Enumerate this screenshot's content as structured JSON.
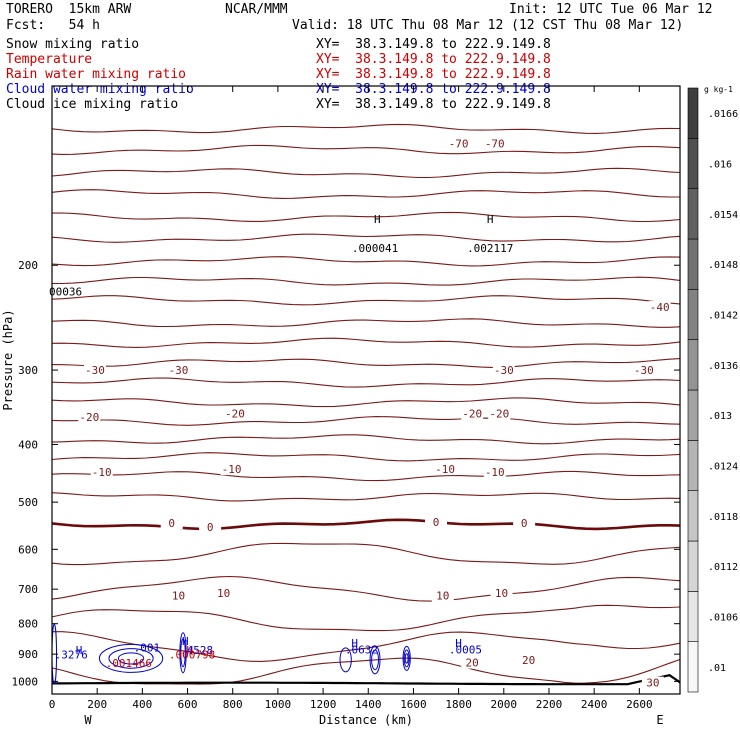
{
  "header": {
    "model": "TORERO  15km ARW",
    "org": "NCAR/MMM",
    "init": "Init: 12 UTC Tue 06 Mar 12",
    "fcst": "Fcst:   54 h",
    "valid": "Valid: 18 UTC Thu 08 Mar 12 (12 CST Thu 08 Mar 12)"
  },
  "legend": [
    {
      "label": "Snow mixing ratio",
      "color": "#000000",
      "xy": "XY=  38.3.149.8 to 222.9.149.8"
    },
    {
      "label": "Temperature",
      "color": "#cc0000",
      "xy": "XY=  38.3.149.8 to 222.9.149.8"
    },
    {
      "label": "Rain water mixing ratio",
      "color": "#cc0000",
      "xy": "XY=  38.3.149.8 to 222.9.149.8"
    },
    {
      "label": "Cloud water mixing ratio",
      "color": "#0000cc",
      "xy": "XY=  38.3.149.8 to 222.9.149.8"
    },
    {
      "label": "Cloud ice mixing ratio",
      "color": "#000000",
      "xy": "XY=  38.3.149.8 to 222.9.149.8"
    }
  ],
  "colors": {
    "temperature": "#7a1a1a",
    "zero_isotherm": "#6a0a0a",
    "rain": "#cc0000",
    "cloud_water": "#0000cc",
    "terrain": "#000000"
  },
  "chart_data": {
    "type": "cross-section",
    "xlabel": "Distance (km)",
    "ylabel": "Pressure (hPa)",
    "xlim": [
      0,
      2780
    ],
    "ylim": [
      1050,
      100
    ],
    "y_scale": "log",
    "x_ticks": [
      0,
      200,
      400,
      600,
      800,
      1000,
      1200,
      1400,
      1600,
      1800,
      2000,
      2200,
      2400,
      2600
    ],
    "y_ticks": [
      200,
      300,
      400,
      500,
      600,
      700,
      800,
      900,
      1000
    ],
    "x_end_labels": {
      "left": "W",
      "right": "E"
    },
    "colorbar": {
      "units": "g kg-1",
      "ticks": [
        ".01",
        ".0106",
        ".0112",
        ".0118",
        ".0124",
        ".013",
        ".0136",
        ".0142",
        ".0148",
        ".0154",
        ".016",
        ".0166"
      ]
    },
    "temperature_contour_labels": [
      {
        "text": "-70",
        "x": 1800,
        "p": 125
      },
      {
        "text": "-70",
        "x": 1960,
        "p": 125
      },
      {
        "text": "-40",
        "x": 2690,
        "p": 235
      },
      {
        "text": "-30",
        "x": 190,
        "p": 300
      },
      {
        "text": "-30",
        "x": 560,
        "p": 300
      },
      {
        "text": "-30",
        "x": 2000,
        "p": 300
      },
      {
        "text": "-30",
        "x": 2620,
        "p": 300
      },
      {
        "text": "-20",
        "x": 165,
        "p": 360
      },
      {
        "text": "-20",
        "x": 810,
        "p": 355
      },
      {
        "text": "-20",
        "x": 1860,
        "p": 355
      },
      {
        "text": "-20",
        "x": 1980,
        "p": 355
      },
      {
        "text": "-10",
        "x": 220,
        "p": 445
      },
      {
        "text": "-10",
        "x": 795,
        "p": 440
      },
      {
        "text": "-10",
        "x": 1740,
        "p": 440
      },
      {
        "text": "-10",
        "x": 1960,
        "p": 445
      },
      {
        "text": "0",
        "x": 530,
        "p": 542
      },
      {
        "text": "0",
        "x": 700,
        "p": 550
      },
      {
        "text": "0",
        "x": 1700,
        "p": 540
      },
      {
        "text": "0",
        "x": 2090,
        "p": 542
      },
      {
        "text": "10",
        "x": 560,
        "p": 718
      },
      {
        "text": "10",
        "x": 760,
        "p": 710
      },
      {
        "text": "10",
        "x": 1730,
        "p": 718
      },
      {
        "text": "10",
        "x": 1990,
        "p": 710
      },
      {
        "text": "20",
        "x": 1860,
        "p": 930
      },
      {
        "text": "20",
        "x": 2110,
        "p": 920
      },
      {
        "text": "30",
        "x": 2660,
        "p": 1005
      }
    ],
    "extrema_labels": [
      {
        "text": "H",
        "x": 1440,
        "p": 170,
        "color": "#000000"
      },
      {
        "text": ".000041",
        "x": 1430,
        "p": 190,
        "color": "#000000"
      },
      {
        "text": "H",
        "x": 1940,
        "p": 170,
        "color": "#000000"
      },
      {
        "text": ".002117",
        "x": 1940,
        "p": 190,
        "color": "#000000"
      },
      {
        "text": "00036",
        "x": 60,
        "p": 225,
        "color": "#000000"
      },
      {
        "text": "H",
        "x": 120,
        "p": 900,
        "color": "#0000cc"
      },
      {
        "text": ".3276",
        "x": 85,
        "p": 915,
        "color": "#0000cc"
      },
      {
        "text": ".001",
        "x": 420,
        "p": 890,
        "color": "#0000cc"
      },
      {
        "text": "H",
        "x": 590,
        "p": 868,
        "color": "#0000cc"
      },
      {
        "text": "H",
        "x": 610,
        "p": 900,
        "color": "#cc0000"
      },
      {
        "text": ".4528",
        "x": 640,
        "p": 900,
        "color": "#0000cc"
      },
      {
        "text": ".000798",
        "x": 620,
        "p": 915,
        "color": "#cc0000"
      },
      {
        "text": ".001466",
        "x": 340,
        "p": 945,
        "color": "#cc0000"
      },
      {
        "text": "H",
        "x": 1340,
        "p": 875,
        "color": "#0000cc"
      },
      {
        "text": ".0632",
        "x": 1370,
        "p": 897,
        "color": "#0000cc"
      },
      {
        "text": "H",
        "x": 1800,
        "p": 875,
        "color": "#0000cc"
      },
      {
        "text": ".0005",
        "x": 1830,
        "p": 897,
        "color": "#0000cc"
      }
    ]
  }
}
